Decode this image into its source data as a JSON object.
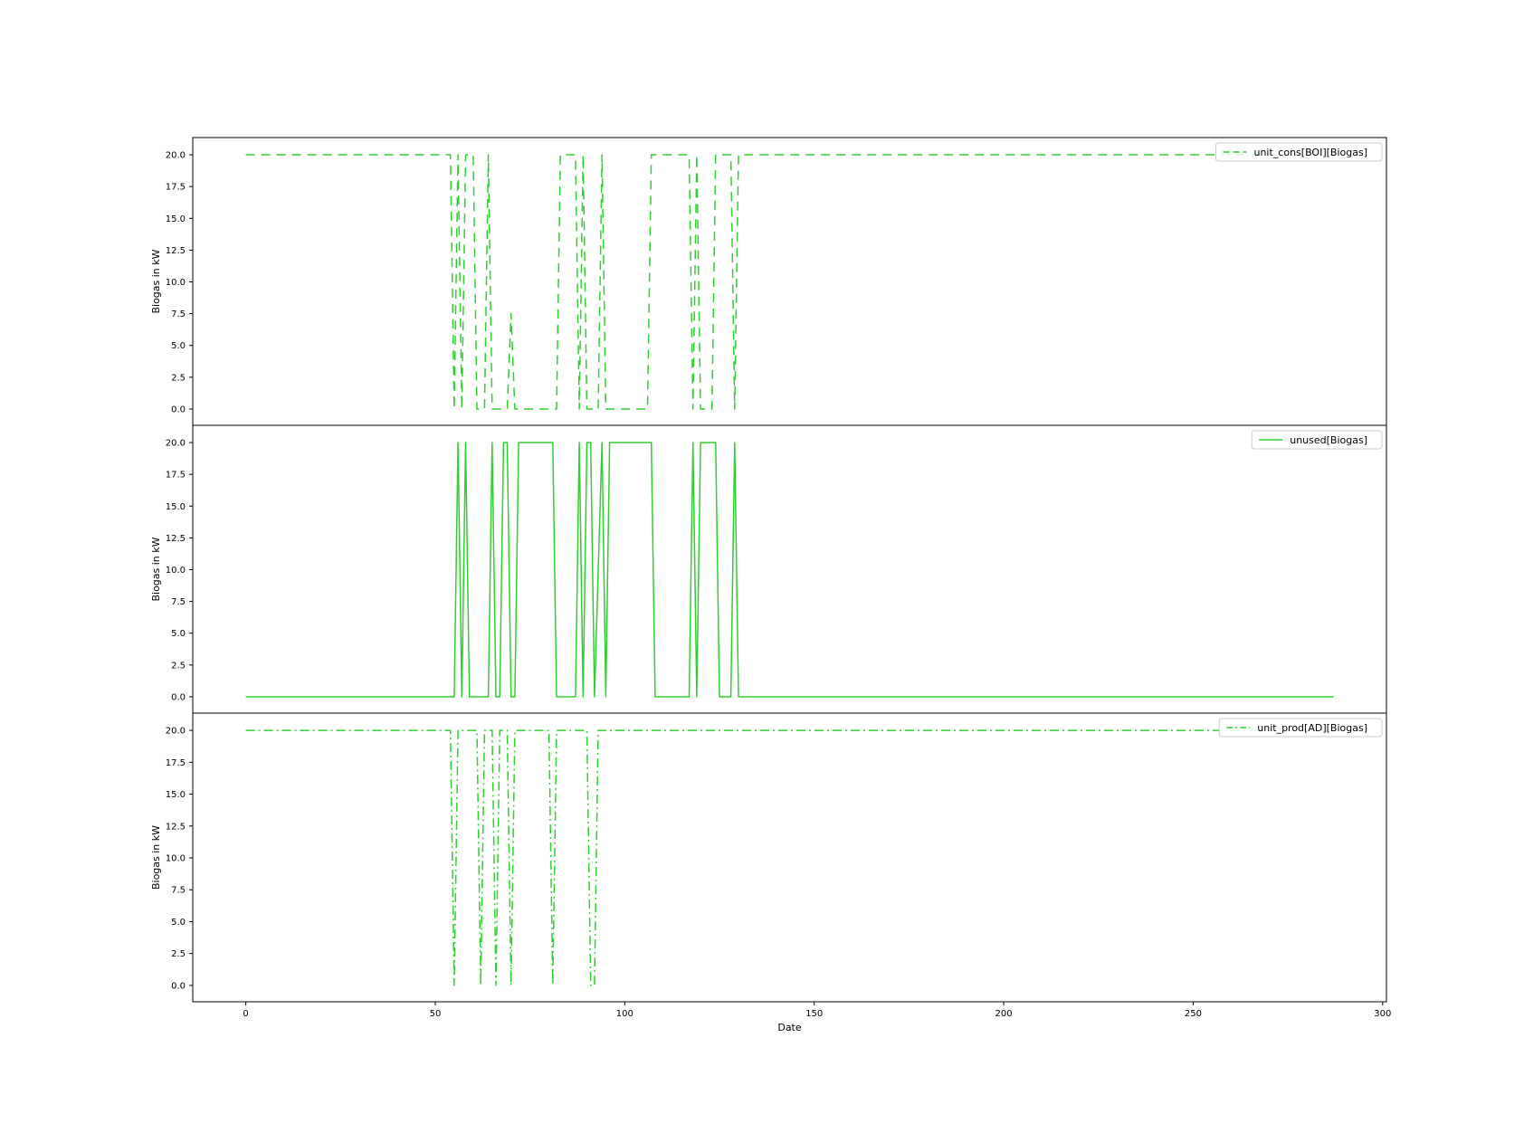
{
  "chart_data": {
    "type": "line",
    "shared_x": true,
    "xlabel": "Date",
    "xlim": [
      -14,
      301
    ],
    "x_ticks": [
      0,
      50,
      100,
      150,
      200,
      250,
      300
    ],
    "accent_color": "#32cd32",
    "panels": [
      {
        "ylabel": "Biogas in kW",
        "ylim": [
          -1,
          21
        ],
        "y_ticks": [
          "0.0",
          "2.5",
          "5.0",
          "7.5",
          "10.0",
          "12.5",
          "15.0",
          "17.5",
          "20.0"
        ],
        "legend_position": "top-right",
        "series": [
          {
            "name": "unit_cons[BOI][Biogas]",
            "line_style": "dashed",
            "color": "#32cd32",
            "points": [
              [
                0,
                20
              ],
              [
                54,
                20
              ],
              [
                55,
                0
              ],
              [
                56,
                20
              ],
              [
                57,
                0
              ],
              [
                58,
                20
              ],
              [
                60,
                20
              ],
              [
                61,
                0
              ],
              [
                63,
                0
              ],
              [
                64,
                20
              ],
              [
                65,
                0
              ],
              [
                69,
                0
              ],
              [
                70,
                7.5
              ],
              [
                71,
                0
              ],
              [
                82,
                0
              ],
              [
                83,
                20
              ],
              [
                87,
                20
              ],
              [
                88,
                0
              ],
              [
                89,
                20
              ],
              [
                90,
                0
              ],
              [
                93,
                0
              ],
              [
                94,
                20
              ],
              [
                95,
                0
              ],
              [
                106,
                0
              ],
              [
                107,
                20
              ],
              [
                117,
                20
              ],
              [
                118,
                0
              ],
              [
                119,
                20
              ],
              [
                120,
                0
              ],
              [
                123,
                0
              ],
              [
                124,
                20
              ],
              [
                128,
                20
              ],
              [
                129,
                0
              ],
              [
                130,
                20
              ],
              [
                287,
                20
              ]
            ]
          }
        ]
      },
      {
        "ylabel": "Biogas in kW",
        "ylim": [
          -1,
          21
        ],
        "y_ticks": [
          "0.0",
          "2.5",
          "5.0",
          "7.5",
          "10.0",
          "12.5",
          "15.0",
          "17.5",
          "20.0"
        ],
        "legend_position": "top-right",
        "series": [
          {
            "name": "unused[Biogas]",
            "line_style": "solid",
            "color": "#32cd32",
            "points": [
              [
                0,
                0
              ],
              [
                55,
                0
              ],
              [
                56,
                20
              ],
              [
                57,
                0
              ],
              [
                58,
                20
              ],
              [
                59,
                0
              ],
              [
                64,
                0
              ],
              [
                65,
                20
              ],
              [
                66,
                0
              ],
              [
                67,
                0
              ],
              [
                68,
                20
              ],
              [
                69,
                20
              ],
              [
                70,
                0
              ],
              [
                71,
                0
              ],
              [
                72,
                20
              ],
              [
                81,
                20
              ],
              [
                82,
                0
              ],
              [
                87,
                0
              ],
              [
                88,
                20
              ],
              [
                89,
                0
              ],
              [
                90,
                20
              ],
              [
                91,
                20
              ],
              [
                92,
                0
              ],
              [
                94,
                20
              ],
              [
                95,
                0
              ],
              [
                96,
                20
              ],
              [
                107,
                20
              ],
              [
                108,
                0
              ],
              [
                117,
                0
              ],
              [
                118,
                20
              ],
              [
                119,
                0
              ],
              [
                120,
                20
              ],
              [
                124,
                20
              ],
              [
                125,
                0
              ],
              [
                128,
                0
              ],
              [
                129,
                20
              ],
              [
                130,
                0
              ],
              [
                287,
                0
              ]
            ]
          }
        ]
      },
      {
        "ylabel": "Biogas in kW",
        "ylim": [
          -1,
          21
        ],
        "y_ticks": [
          "0.0",
          "2.5",
          "5.0",
          "7.5",
          "10.0",
          "12.5",
          "15.0",
          "17.5",
          "20.0"
        ],
        "legend_position": "top-right",
        "series": [
          {
            "name": "unit_prod[AD][Biogas]",
            "line_style": "dash-dot",
            "color": "#32cd32",
            "points": [
              [
                0,
                20
              ],
              [
                54,
                20
              ],
              [
                55,
                0
              ],
              [
                56,
                20
              ],
              [
                61,
                20
              ],
              [
                62,
                0
              ],
              [
                63,
                20
              ],
              [
                65,
                20
              ],
              [
                66,
                0
              ],
              [
                67,
                20
              ],
              [
                69,
                20
              ],
              [
                70,
                0
              ],
              [
                71,
                20
              ],
              [
                80,
                20
              ],
              [
                81,
                0
              ],
              [
                82,
                20
              ],
              [
                90,
                20
              ],
              [
                91,
                0
              ],
              [
                92,
                0
              ],
              [
                93,
                20
              ],
              [
                287,
                20
              ]
            ]
          }
        ]
      }
    ]
  }
}
